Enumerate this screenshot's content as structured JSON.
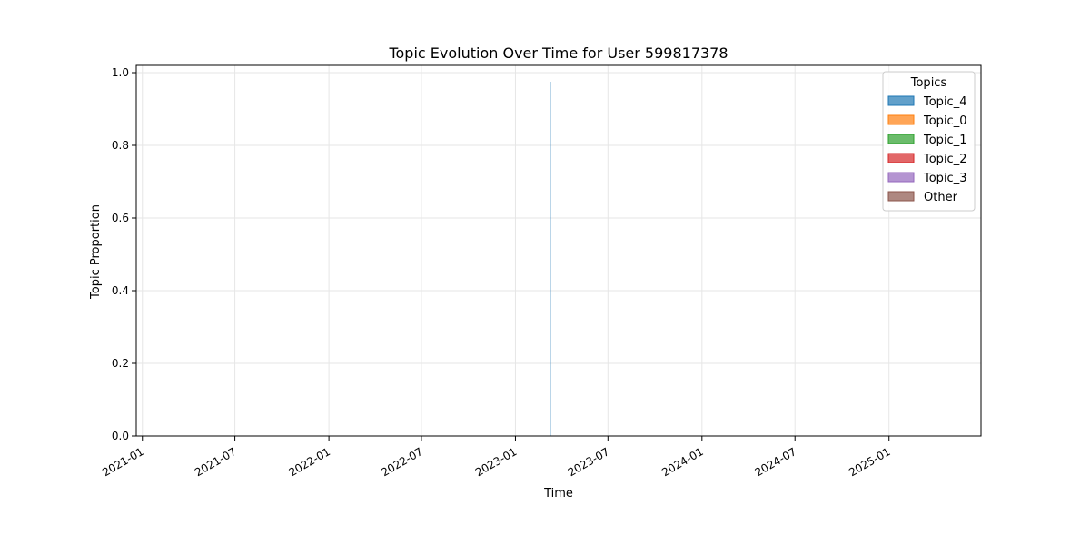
{
  "chart_data": {
    "type": "area",
    "title": "Topic Evolution Over Time for User 599817378",
    "xlabel": "Time",
    "ylabel": "Topic Proportion",
    "ylim": [
      0,
      1.02
    ],
    "xlim": [
      "2020-12-20",
      "2025-06-30"
    ],
    "x_ticks": [
      "2021-01",
      "2021-07",
      "2022-01",
      "2022-07",
      "2023-01",
      "2023-07",
      "2024-01",
      "2024-07",
      "2025-01"
    ],
    "y_ticks": [
      0.0,
      0.2,
      0.4,
      0.6,
      0.8,
      1.0
    ],
    "y_tick_labels": [
      "0.0",
      "0.2",
      "0.4",
      "0.6",
      "0.8",
      "1.0"
    ],
    "grid": true,
    "legend": {
      "title": "Topics",
      "position": "top-right"
    },
    "series": [
      {
        "name": "Topic_4",
        "color": "#1f77b4",
        "points": [
          {
            "x": "2023-03-10",
            "y": 0.975
          }
        ]
      },
      {
        "name": "Topic_0",
        "color": "#ff7f0e",
        "points": [
          {
            "x": "2023-03-10",
            "y": 0.0
          }
        ]
      },
      {
        "name": "Topic_1",
        "color": "#2ca02c",
        "points": [
          {
            "x": "2023-03-10",
            "y": 0.0
          }
        ]
      },
      {
        "name": "Topic_2",
        "color": "#d62728",
        "points": [
          {
            "x": "2023-03-10",
            "y": 0.0
          }
        ]
      },
      {
        "name": "Topic_3",
        "color": "#9467bd",
        "points": [
          {
            "x": "2023-03-10",
            "y": 0.0
          }
        ]
      },
      {
        "name": "Other",
        "color": "#8c564b",
        "points": [
          {
            "x": "2023-03-10",
            "y": 0.0
          }
        ]
      }
    ]
  }
}
